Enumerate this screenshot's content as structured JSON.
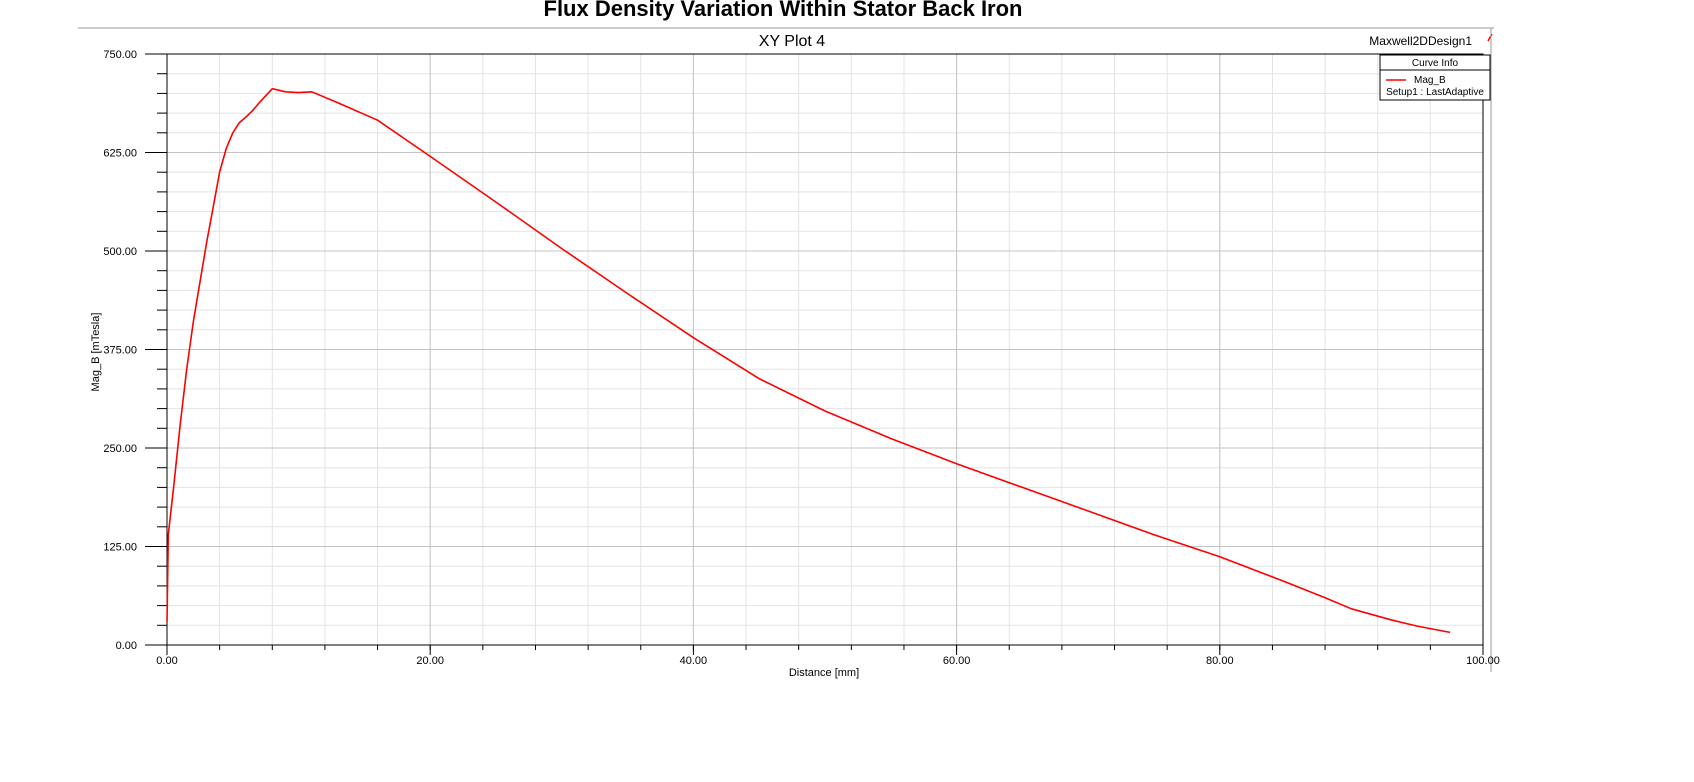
{
  "header": {
    "title": "Flux Density Variation Within Stator Back Iron",
    "design_name": "Maxwell2DDesign1"
  },
  "legend": {
    "header": "Curve Info",
    "entries": [
      {
        "name": "Mag_B",
        "sub": "Setup1 : LastAdaptive",
        "color": "#ff0000"
      }
    ]
  },
  "chart_data": {
    "type": "line",
    "title": "XY Plot 4",
    "xlabel": "Distance [mm]",
    "ylabel": "Mag_B [mTesla]",
    "xlim": [
      0,
      100
    ],
    "ylim": [
      0,
      750
    ],
    "x_ticks": [
      0,
      20,
      40,
      60,
      80,
      100
    ],
    "x_tick_labels": [
      "0.00",
      "20.00",
      "40.00",
      "60.00",
      "80.00",
      "100.00"
    ],
    "y_ticks": [
      0,
      125,
      250,
      375,
      500,
      625,
      750
    ],
    "y_tick_labels": [
      "0.00",
      "125.00",
      "250.00",
      "375.00",
      "500.00",
      "625.00",
      "750.00"
    ],
    "grid": true,
    "legend_position": "top-right",
    "series": [
      {
        "name": "Mag_B",
        "color": "#ff0000",
        "points": [
          [
            0,
            30
          ],
          [
            0.1,
            140
          ],
          [
            0.5,
            200
          ],
          [
            1.0,
            280
          ],
          [
            1.5,
            350
          ],
          [
            2.0,
            410
          ],
          [
            2.5,
            460
          ],
          [
            3.0,
            510
          ],
          [
            3.5,
            555
          ],
          [
            4.0,
            600
          ],
          [
            4.5,
            630
          ],
          [
            5.0,
            650
          ],
          [
            5.5,
            663
          ],
          [
            6.0,
            670
          ],
          [
            6.5,
            678
          ],
          [
            7.0,
            688
          ],
          [
            7.5,
            697
          ],
          [
            8.0,
            706
          ],
          [
            9.0,
            702
          ],
          [
            10.0,
            701
          ],
          [
            11.0,
            702
          ],
          [
            13.0,
            688
          ],
          [
            16.0,
            666
          ],
          [
            20.0,
            620
          ],
          [
            25.0,
            562
          ],
          [
            30.0,
            503
          ],
          [
            35.0,
            446
          ],
          [
            40.0,
            390
          ],
          [
            45.0,
            338
          ],
          [
            50.0,
            297
          ],
          [
            55.0,
            262
          ],
          [
            60.0,
            230
          ],
          [
            65.0,
            200
          ],
          [
            70.0,
            170
          ],
          [
            75.0,
            140
          ],
          [
            80.0,
            112
          ],
          [
            85.0,
            80
          ],
          [
            88.0,
            60
          ],
          [
            90.0,
            46
          ],
          [
            93.0,
            32
          ],
          [
            95.0,
            24
          ],
          [
            97.5,
            16
          ]
        ]
      }
    ]
  }
}
